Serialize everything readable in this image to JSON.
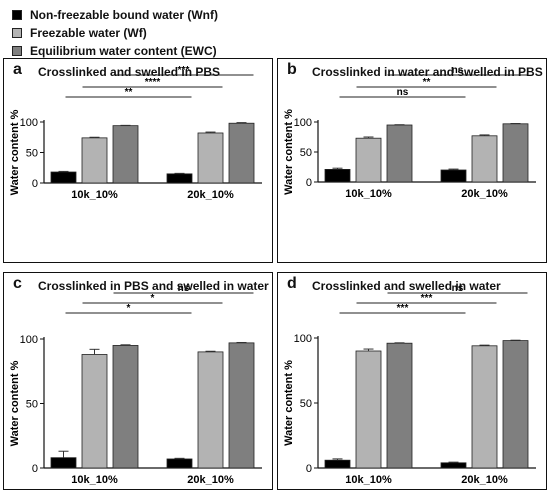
{
  "legend": [
    {
      "label": "Non-freezable bound water (Wnf)",
      "color": "#000000"
    },
    {
      "label": "Freezable water (Wf)",
      "color": "#b3b3b3"
    },
    {
      "label": "Equilibrium water content (EWC)",
      "color": "#7f7f7f"
    }
  ],
  "chart_data": [
    {
      "type": "bar",
      "letter": "a",
      "title": "Crosslinked and swelled in PBS",
      "categories": [
        "10k_10%",
        "20k_10%"
      ],
      "series": [
        {
          "name": "Non-freezable bound water (Wnf)",
          "values": [
            18,
            15
          ],
          "errors": [
            1,
            0.8
          ]
        },
        {
          "name": "Freezable water (Wf)",
          "values": [
            74,
            82
          ],
          "errors": [
            1,
            1.5
          ]
        },
        {
          "name": "Equilibrium water content (EWC)",
          "values": [
            94,
            98
          ],
          "errors": [
            0.5,
            1
          ]
        }
      ],
      "ylabel": "Water content %",
      "ylim": [
        0,
        100
      ],
      "yticks": [
        0,
        50,
        100
      ],
      "significance": [
        "**",
        "****",
        "***"
      ]
    },
    {
      "type": "bar",
      "letter": "b",
      "title": "Crosslinked in water and swelled in PBS",
      "categories": [
        "10k_10%",
        "20k_10%"
      ],
      "series": [
        {
          "name": "Non-freezable bound water (Wnf)",
          "values": [
            21,
            20
          ],
          "errors": [
            2,
            1.5
          ]
        },
        {
          "name": "Freezable water (Wf)",
          "values": [
            73,
            77
          ],
          "errors": [
            2,
            1.5
          ]
        },
        {
          "name": "Equilibrium water content (EWC)",
          "values": [
            95,
            97
          ],
          "errors": [
            0.5,
            0.5
          ]
        }
      ],
      "ylabel": "Water content %",
      "ylim": [
        0,
        100
      ],
      "yticks": [
        0,
        50,
        100
      ],
      "significance": [
        "ns",
        "**",
        "ns"
      ]
    },
    {
      "type": "bar",
      "letter": "c",
      "title": "Crosslinked in PBS and swelled in water",
      "categories": [
        "10k_10%",
        "20k_10%"
      ],
      "series": [
        {
          "name": "Non-freezable bound water (Wnf)",
          "values": [
            8,
            7
          ],
          "errors": [
            5,
            0.5
          ]
        },
        {
          "name": "Freezable water (Wf)",
          "values": [
            88,
            90
          ],
          "errors": [
            4,
            0.5
          ]
        },
        {
          "name": "Equilibrium water content (EWC)",
          "values": [
            95,
            97
          ],
          "errors": [
            0.5,
            0.3
          ]
        }
      ],
      "ylabel": "Water content %",
      "ylim": [
        0,
        100
      ],
      "yticks": [
        0,
        50,
        100
      ],
      "significance": [
        "*",
        "*",
        "ns"
      ]
    },
    {
      "type": "bar",
      "letter": "d",
      "title": "Crosslinked and swelled in water",
      "categories": [
        "10k_10%",
        "20k_10%"
      ],
      "series": [
        {
          "name": "Non-freezable bound water (Wnf)",
          "values": [
            6,
            4
          ],
          "errors": [
            1,
            0.5
          ]
        },
        {
          "name": "Freezable water (Wf)",
          "values": [
            90,
            94
          ],
          "errors": [
            1.5,
            0.5
          ]
        },
        {
          "name": "Equilibrium water content (EWC)",
          "values": [
            96,
            98
          ],
          "errors": [
            0.3,
            0.3
          ]
        }
      ],
      "ylabel": "Water content %",
      "ylim": [
        0,
        100
      ],
      "yticks": [
        0,
        50,
        100
      ],
      "significance": [
        "***",
        "***",
        "ns"
      ]
    }
  ]
}
